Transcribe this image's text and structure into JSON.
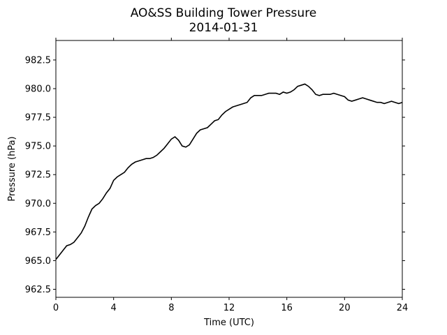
{
  "chart_data": {
    "type": "line",
    "title": "AO&SS Building Tower Pressure",
    "subtitle": "2014-01-31",
    "xlabel": "Time (UTC)",
    "ylabel": "Pressure (hPa)",
    "xlim": [
      0,
      24
    ],
    "ylim": [
      961.8,
      984.2
    ],
    "xticks": [
      0,
      4,
      8,
      12,
      16,
      20,
      24
    ],
    "yticks": [
      962.5,
      965.0,
      967.5,
      970.0,
      972.5,
      975.0,
      977.5,
      980.0,
      982.5
    ],
    "grid": false,
    "legend": "none",
    "line_color": "#000000",
    "series": [
      {
        "x": [
          0,
          0.25,
          0.5,
          0.75,
          1,
          1.25,
          1.5,
          1.75,
          2,
          2.25,
          2.5,
          2.75,
          3,
          3.25,
          3.5,
          3.75,
          4,
          4.25,
          4.5,
          4.75,
          5,
          5.25,
          5.5,
          5.75,
          6,
          6.25,
          6.5,
          6.75,
          7,
          7.25,
          7.5,
          7.75,
          8,
          8.25,
          8.5,
          8.75,
          9,
          9.25,
          9.5,
          9.75,
          10,
          10.25,
          10.5,
          10.75,
          11,
          11.25,
          11.5,
          11.75,
          12,
          12.25,
          12.5,
          12.75,
          13,
          13.25,
          13.5,
          13.75,
          14,
          14.25,
          14.5,
          14.75,
          15,
          15.25,
          15.5,
          15.75,
          16,
          16.25,
          16.5,
          16.75,
          17,
          17.25,
          17.5,
          17.75,
          18,
          18.25,
          18.5,
          18.75,
          19,
          19.25,
          19.5,
          19.75,
          20,
          20.25,
          20.5,
          20.75,
          21,
          21.25,
          21.5,
          21.75,
          22,
          22.25,
          22.5,
          22.75,
          23,
          23.25,
          23.5,
          23.75,
          24
        ],
        "y": [
          965.1,
          965.5,
          965.9,
          966.3,
          966.4,
          966.6,
          967.0,
          967.4,
          968.0,
          968.8,
          969.5,
          969.8,
          970.0,
          970.4,
          970.9,
          971.3,
          972.0,
          972.3,
          972.5,
          972.7,
          973.1,
          973.4,
          973.6,
          973.7,
          973.8,
          973.9,
          973.9,
          974.0,
          974.2,
          974.5,
          974.8,
          975.2,
          975.6,
          975.8,
          975.5,
          975.0,
          974.9,
          975.1,
          975.6,
          976.1,
          976.4,
          976.5,
          976.6,
          976.9,
          977.2,
          977.3,
          977.7,
          978.0,
          978.2,
          978.4,
          978.5,
          978.6,
          978.7,
          978.8,
          979.2,
          979.4,
          979.4,
          979.4,
          979.5,
          979.6,
          979.6,
          979.6,
          979.5,
          979.7,
          979.6,
          979.7,
          979.9,
          980.2,
          980.3,
          980.4,
          980.2,
          979.9,
          979.5,
          979.4,
          979.5,
          979.5,
          979.5,
          979.6,
          979.5,
          979.4,
          979.3,
          979.0,
          978.9,
          979.0,
          979.1,
          979.2,
          979.1,
          979.0,
          978.9,
          978.8,
          978.8,
          978.7,
          978.8,
          978.9,
          978.8,
          978.7,
          978.8
        ]
      }
    ]
  }
}
